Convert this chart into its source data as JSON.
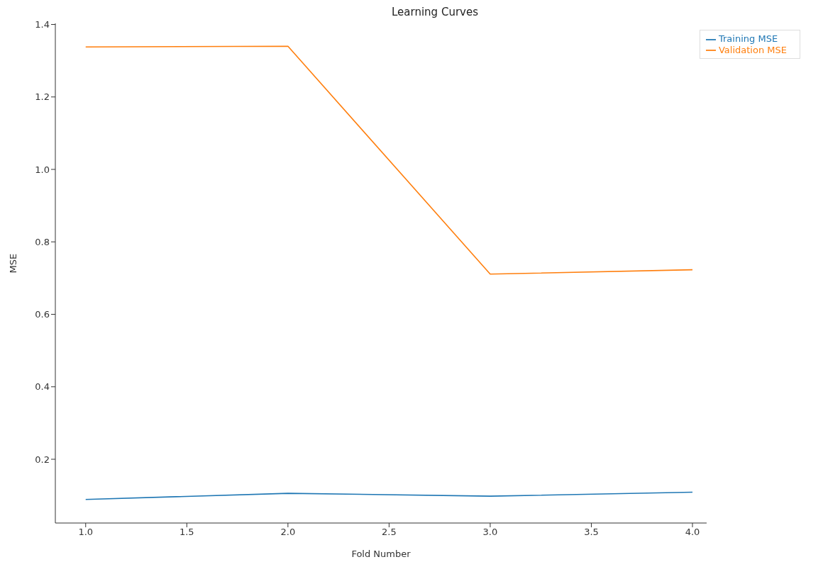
{
  "chart_data": {
    "type": "line",
    "title": "Learning Curves",
    "xlabel": "Fold Number",
    "ylabel": "MSE",
    "x": [
      1,
      2,
      3,
      4
    ],
    "series": [
      {
        "name": "Training MSE",
        "color": "#1f77b4",
        "values": [
          0.089,
          0.106,
          0.098,
          0.109
        ]
      },
      {
        "name": "Validation MSE",
        "color": "#ff7f0e",
        "values": [
          1.338,
          1.34,
          0.711,
          0.723
        ]
      }
    ],
    "xlim": [
      0.85,
      4.07
    ],
    "xticks": [
      {
        "value": 1,
        "label": "1.0"
      },
      1.5,
      {
        "value": 2,
        "label": "2.0"
      },
      2.5,
      {
        "value": 3,
        "label": "3.0"
      },
      3.5,
      {
        "value": 4,
        "label": "4.0"
      }
    ],
    "ylim": [
      0.024,
      1.403
    ],
    "yticks": [
      0.2,
      0.4,
      0.6,
      0.8,
      {
        "value": 1,
        "label": "1.0"
      },
      1.2,
      1.4
    ],
    "legend": "top right",
    "grid": false,
    "marker": "none",
    "line_style": "solid"
  }
}
